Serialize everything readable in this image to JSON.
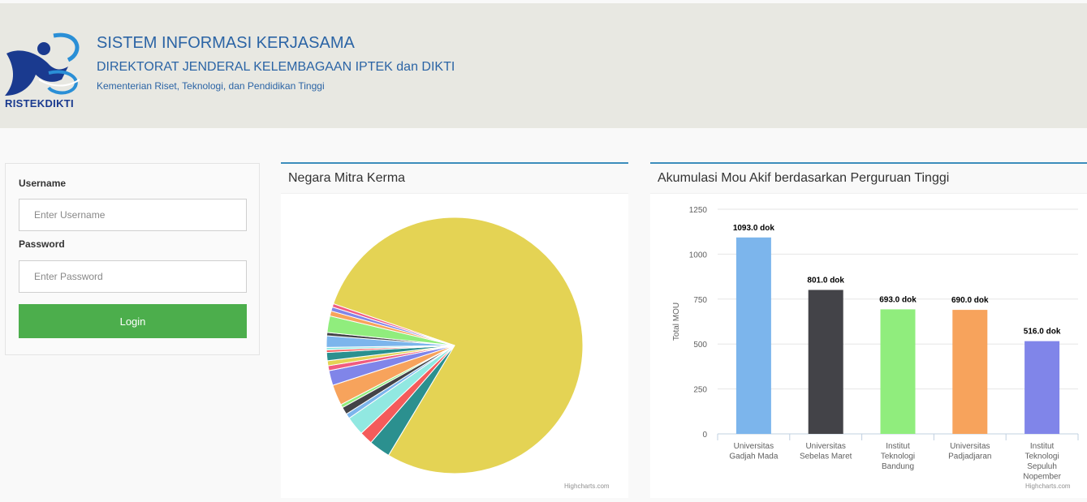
{
  "header": {
    "logo_text": "RISTEKDIKTI",
    "title": "SISTEM INFORMASI KERJASAMA",
    "subtitle": "DIREKTORAT JENDERAL KELEMBAGAAN IPTEK dan DIKTI",
    "ministry": "Kementerian Riset, Teknologi, dan Pendidikan Tinggi"
  },
  "login": {
    "username_label": "Username",
    "username_placeholder": "Enter Username",
    "password_label": "Password",
    "password_placeholder": "Enter Password",
    "login_button": "Login"
  },
  "pie_panel": {
    "title": "Negara Mitra Kerma",
    "credit": "Highcharts.com"
  },
  "bar_panel": {
    "title": "Akumulasi Mou Akif berdasarkan Perguruan Tinggi",
    "credit": "Highcharts.com"
  },
  "chart_data": [
    {
      "type": "pie",
      "title": "Negara Mitra Kerma",
      "slices": [
        {
          "value": 75.2,
          "color": "#e4d354"
        },
        {
          "value": 2.6,
          "color": "#2b908f"
        },
        {
          "value": 1.6,
          "color": "#f45b5b"
        },
        {
          "value": 2.3,
          "color": "#91e8e1"
        },
        {
          "value": 0.6,
          "color": "#7cb5ec"
        },
        {
          "value": 0.9,
          "color": "#434348"
        },
        {
          "value": 0.4,
          "color": "#90ed7d"
        },
        {
          "value": 2.5,
          "color": "#f7a35c"
        },
        {
          "value": 1.8,
          "color": "#8085e9"
        },
        {
          "value": 0.6,
          "color": "#f15c80"
        },
        {
          "value": 0.6,
          "color": "#e4d354"
        },
        {
          "value": 1.0,
          "color": "#2b908f"
        },
        {
          "value": 0.3,
          "color": "#f45b5b"
        },
        {
          "value": 0.3,
          "color": "#91e8e1"
        },
        {
          "value": 1.4,
          "color": "#7cb5ec"
        },
        {
          "value": 0.4,
          "color": "#434348"
        },
        {
          "value": 2.0,
          "color": "#90ed7d"
        },
        {
          "value": 0.6,
          "color": "#f7a35c"
        },
        {
          "value": 0.5,
          "color": "#8085e9"
        },
        {
          "value": 0.4,
          "color": "#f15c80"
        }
      ]
    },
    {
      "type": "bar",
      "title": "Akumulasi Mou Akif berdasarkan Perguruan Tinggi",
      "ylabel": "Total MOU",
      "ylim": [
        0,
        1250
      ],
      "yticks": [
        0,
        250,
        500,
        750,
        1000,
        1250
      ],
      "grid": true,
      "categories": [
        [
          "Universitas",
          "Gadjah Mada"
        ],
        [
          "Universitas",
          "Sebelas Maret"
        ],
        [
          "Institut",
          "Teknologi",
          "Bandung"
        ],
        [
          "Universitas",
          "Padjadjaran"
        ],
        [
          "Institut",
          "Teknologi",
          "Sepuluh",
          "Nopember"
        ]
      ],
      "values": [
        1093.0,
        801.0,
        693.0,
        690.0,
        516.0
      ],
      "data_labels": [
        "1093.0 dok",
        "801.0 dok",
        "693.0 dok",
        "690.0 dok",
        "516.0 dok"
      ],
      "colors": [
        "#7cb5ec",
        "#434348",
        "#90ed7d",
        "#f7a35c",
        "#8085e9"
      ]
    }
  ]
}
